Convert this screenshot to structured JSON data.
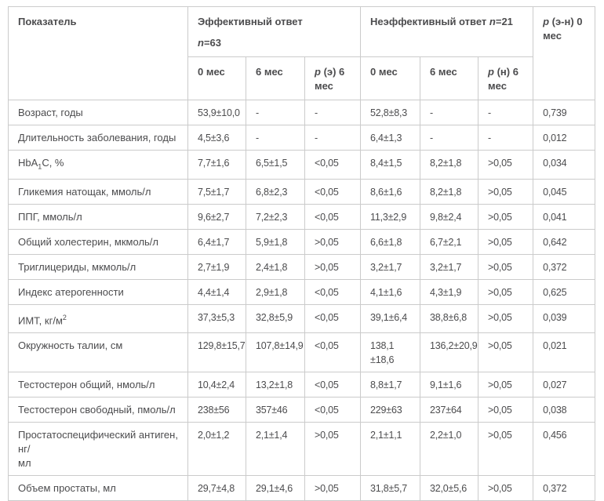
{
  "colors": {
    "background": "#ffffff",
    "border": "#cbcbcb",
    "text": "#4c4c4e"
  },
  "table": {
    "header": {
      "indicator": "Показатель",
      "effective_group": {
        "title": "Эффективный ответ",
        "n_var": "n",
        "n_value": "=63"
      },
      "ineffective_group": {
        "title": "Неэффективный ответ ",
        "n_var": "n",
        "n_value": "=21"
      },
      "p_overall": {
        "p_var": "p",
        "rest": " (э-н) 0 мес"
      },
      "sub": {
        "eff_0": "0 мес",
        "eff_6": "6 мес",
        "p_eff": {
          "p_var": "p",
          "rest": " (э) 6 мес"
        },
        "ineff_0": "0 мес",
        "ineff_6": "6 мес",
        "p_ineff": {
          "p_var": "p",
          "rest": " (н) 6 мес"
        }
      }
    },
    "rows": [
      {
        "label": "Возраст, годы",
        "cells": [
          "53,9±10,0",
          "-",
          "-",
          "52,8±8,3",
          "-",
          "-",
          "0,739"
        ]
      },
      {
        "label": "Длительность заболевания, годы",
        "cells": [
          "4,5±3,6",
          "-",
          "-",
          "6,4±1,3",
          "-",
          "-",
          "0,012"
        ]
      },
      {
        "label_parts": [
          {
            "text": "HbA"
          },
          {
            "sub": "1"
          },
          {
            "text": "C, %"
          }
        ],
        "cells": [
          "7,7±1,6",
          "6,5±1,5",
          "<0,05",
          "8,4±1,5",
          "8,2±1,8",
          ">0,05",
          "0,034"
        ]
      },
      {
        "label": "Гликемия натощак, ммоль/л",
        "cells": [
          "7,5±1,7",
          "6,8±2,3",
          "<0,05",
          "8,6±1,6",
          "8,2±1,8",
          ">0,05",
          "0,045"
        ]
      },
      {
        "label": "ППГ, ммоль/л",
        "cells": [
          "9,6±2,7",
          "7,2±2,3",
          "<0,05",
          "11,3±2,9",
          "9,8±2,4",
          ">0,05",
          "0,041"
        ]
      },
      {
        "label": "Общий холестерин, мкмоль/л",
        "cells": [
          "6,4±1,7",
          "5,9±1,8",
          ">0,05",
          "6,6±1,8",
          "6,7±2,1",
          ">0,05",
          "0,642"
        ]
      },
      {
        "label": "Триглицериды, мкмоль/л",
        "cells": [
          "2,7±1,9",
          "2,4±1,8",
          ">0,05",
          "3,2±1,7",
          "3,2±1,7",
          ">0,05",
          "0,372"
        ]
      },
      {
        "label": "Индекс атерогенности",
        "cells": [
          "4,4±1,4",
          "2,9±1,8",
          "<0,05",
          "4,1±1,6",
          "4,3±1,9",
          ">0,05",
          "0,625"
        ]
      },
      {
        "label_parts": [
          {
            "text": "ИМТ, кг/м"
          },
          {
            "sup": "2"
          }
        ],
        "cells": [
          "37,3±5,3",
          "32,8±5,9",
          "<0,05",
          "39,1±6,4",
          "38,8±6,8",
          ">0,05",
          "0,039"
        ]
      },
      {
        "label": "Окружность талии, см",
        "cells": [
          "129,8±15,7",
          "107,8±14,9",
          "<0,05",
          [
            "138,1",
            "±18,6"
          ],
          "136,2±20,9",
          ">0,05",
          "0,021"
        ]
      },
      {
        "label": "Тестостерон общий, нмоль/л",
        "cells": [
          "10,4±2,4",
          "13,2±1,8",
          "<0,05",
          "8,8±1,7",
          "9,1±1,6",
          ">0,05",
          "0,027"
        ]
      },
      {
        "label": "Тестостерон свободный, пмоль/л",
        "cells": [
          "238±56",
          "357±46",
          "<0,05",
          "229±63",
          "237±64",
          ">0,05",
          "0,038"
        ]
      },
      {
        "label": [
          "Простатоспецифический антиген, нг/",
          "мл"
        ],
        "cells": [
          "2,0±1,2",
          "2,1±1,4",
          ">0,05",
          "2,1±1,1",
          "2,2±1,0",
          ">0,05",
          "0,456"
        ]
      },
      {
        "label": "Объем простаты, мл",
        "cells": [
          "29,7±4,8",
          "29,1±4,6",
          ">0,05",
          "31,8±5,7",
          "32,0±5,6",
          ">0,05",
          "0,372"
        ]
      }
    ]
  }
}
